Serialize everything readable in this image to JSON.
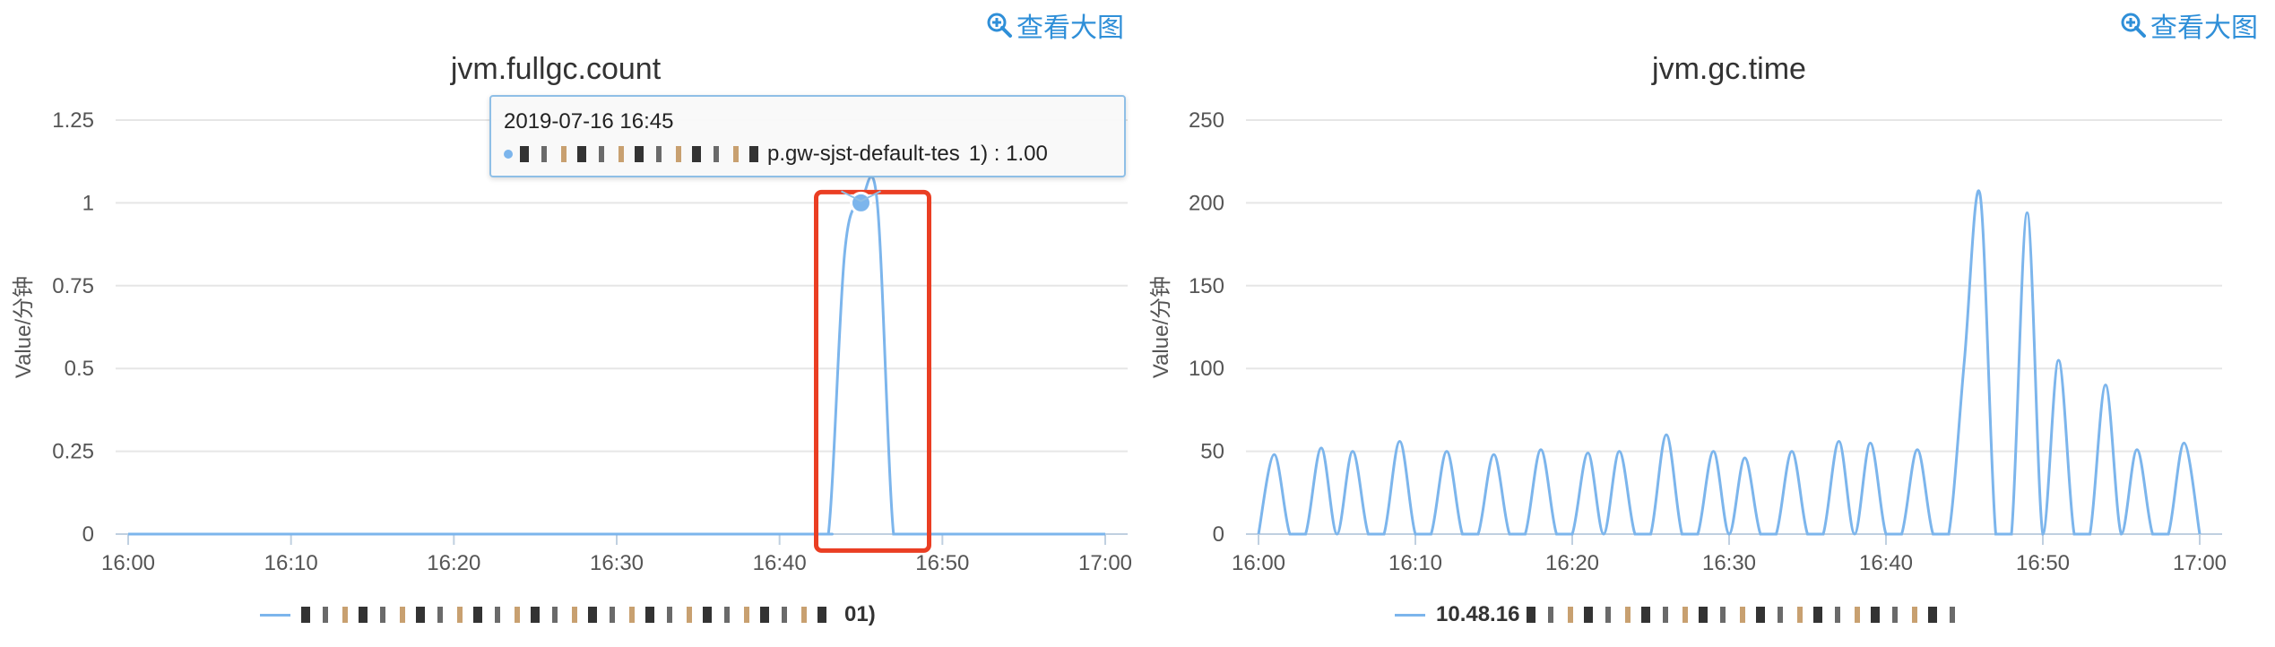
{
  "header": {
    "view_large_label": "查看大图"
  },
  "charts": [
    {
      "id": "left",
      "title": "jvm.fullgc.count",
      "ylabel": "Value/分钟",
      "ytick_labels": [
        "0",
        "0.25",
        "0.5",
        "0.75",
        "1",
        "1.25"
      ],
      "xtick_labels": [
        "16:00",
        "16:10",
        "16:20",
        "16:30",
        "16:40",
        "16:50",
        "17:00"
      ],
      "tooltip": {
        "time": "2019-07-16 16:45",
        "series_text": "1) : 1.00",
        "series_partial": "p.gw-sjst-default-tes"
      },
      "legend_text": "01)",
      "highlight_color": "#ea3e23"
    },
    {
      "id": "right",
      "title": "jvm.gc.time",
      "ylabel": "Value/分钟",
      "ytick_labels": [
        "0",
        "50",
        "100",
        "150",
        "200",
        "250"
      ],
      "xtick_labels": [
        "16:00",
        "16:10",
        "16:20",
        "16:30",
        "16:40",
        "16:50",
        "17:00"
      ],
      "legend_text": "10.48.16"
    }
  ],
  "chart_data": [
    {
      "type": "line",
      "title": "jvm.fullgc.count",
      "ylabel": "Value/分钟",
      "xlabel": "",
      "ylim": [
        0,
        1.25
      ],
      "xlim": [
        "16:00",
        "17:00"
      ],
      "grid": true,
      "legend": "bottom",
      "series": [
        {
          "x": [
            "16:00",
            "16:40",
            "16:41",
            "16:42",
            "16:43",
            "16:44",
            "16:45",
            "16:46",
            "16:47",
            "16:48",
            "16:50",
            "17:00"
          ],
          "values": [
            0,
            0,
            0,
            0,
            0,
            0.85,
            1.0,
            1.0,
            0,
            0,
            0,
            0
          ]
        }
      ]
    },
    {
      "type": "line",
      "title": "jvm.gc.time",
      "ylabel": "Value/分钟",
      "xlabel": "",
      "ylim": [
        0,
        250
      ],
      "xlim": [
        "16:00",
        "17:00"
      ],
      "grid": true,
      "legend": "bottom",
      "series": [
        {
          "x": [
            "16:00",
            "16:01",
            "16:02",
            "16:03",
            "16:04",
            "16:05",
            "16:06",
            "16:07",
            "16:08",
            "16:09",
            "16:10",
            "16:11",
            "16:12",
            "16:13",
            "16:14",
            "16:15",
            "16:16",
            "16:17",
            "16:18",
            "16:19",
            "16:20",
            "16:21",
            "16:22",
            "16:23",
            "16:24",
            "16:25",
            "16:26",
            "16:27",
            "16:28",
            "16:29",
            "16:30",
            "16:31",
            "16:32",
            "16:33",
            "16:34",
            "16:35",
            "16:36",
            "16:37",
            "16:38",
            "16:39",
            "16:40",
            "16:41",
            "16:42",
            "16:43",
            "16:44",
            "16:45",
            "16:46",
            "16:47",
            "16:48",
            "16:49",
            "16:50",
            "16:51",
            "16:52",
            "16:53",
            "16:54",
            "16:55",
            "16:56",
            "16:57",
            "16:58",
            "16:59",
            "17:00"
          ],
          "values": [
            0,
            48,
            0,
            0,
            52,
            0,
            50,
            0,
            0,
            56,
            0,
            0,
            50,
            0,
            0,
            48,
            0,
            0,
            51,
            0,
            0,
            49,
            0,
            50,
            0,
            0,
            60,
            0,
            0,
            50,
            0,
            46,
            0,
            0,
            50,
            0,
            0,
            56,
            0,
            55,
            0,
            0,
            51,
            0,
            0,
            105,
            205,
            0,
            0,
            194,
            0,
            105,
            0,
            0,
            90,
            0,
            51,
            0,
            0,
            55,
            0
          ]
        }
      ]
    }
  ]
}
